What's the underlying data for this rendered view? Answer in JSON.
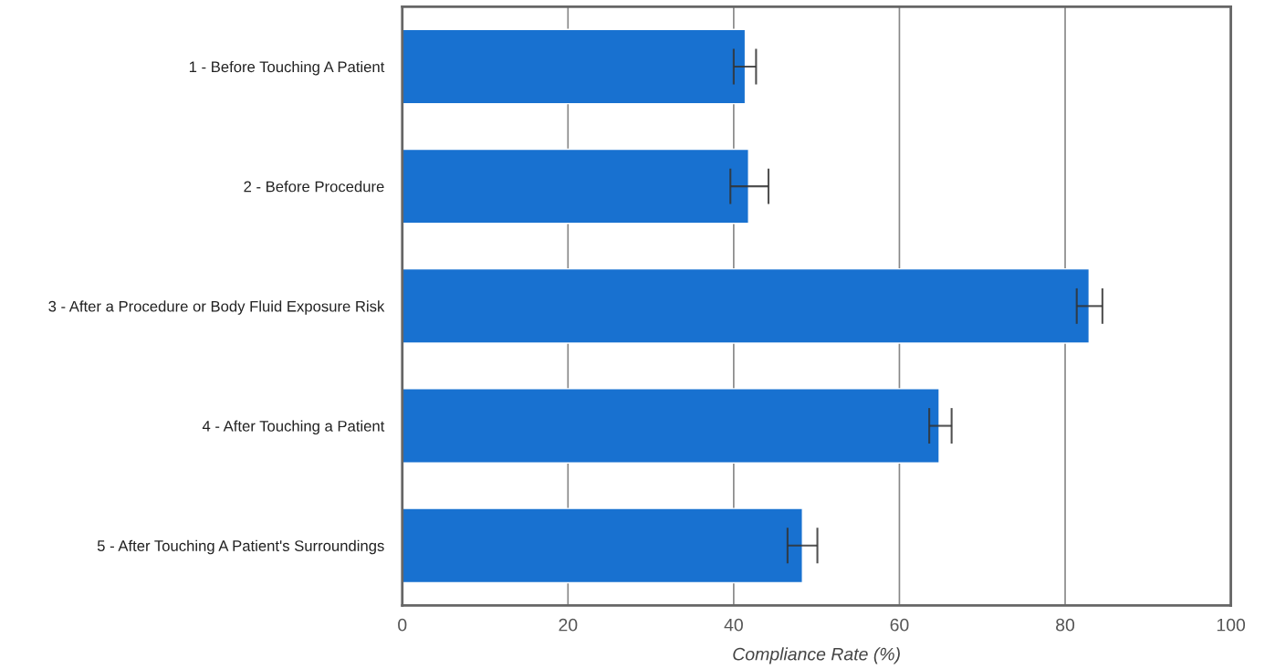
{
  "chart_data": {
    "type": "bar",
    "orientation": "horizontal",
    "categories": [
      "1 - Before Touching A Patient",
      "2 - Before Procedure",
      "3 - After a Procedure or Body Fluid Exposure Risk",
      "4 - After Touching a Patient",
      "5 - After Touching A Patient's Surroundings"
    ],
    "values": [
      41.4,
      41.8,
      82.9,
      64.8,
      48.3
    ],
    "errors": [
      [
        40.0,
        42.7
      ],
      [
        39.6,
        44.2
      ],
      [
        81.4,
        84.5
      ],
      [
        63.6,
        66.3
      ],
      [
        46.5,
        50.1
      ]
    ],
    "color": "#1871d0",
    "xlabel": "Compliance Rate (%)",
    "xlim": [
      0,
      100
    ],
    "xticks": [
      0,
      20,
      40,
      60,
      80,
      100
    ],
    "grid": "x",
    "legend": false
  }
}
